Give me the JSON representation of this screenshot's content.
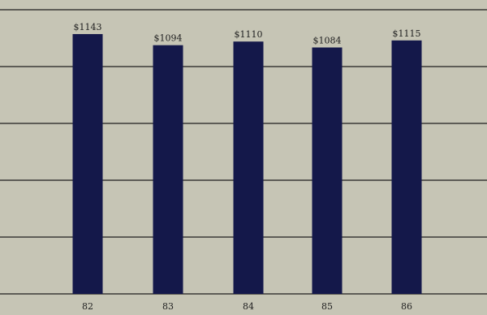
{
  "chart_data": {
    "type": "bar",
    "title": "",
    "xlabel": "",
    "ylabel": "",
    "categories": [
      "82",
      "83",
      "84",
      "85",
      "86"
    ],
    "values": [
      1143,
      1094,
      1110,
      1084,
      1115
    ],
    "data_labels": [
      "$1143",
      "$1094",
      "$1110",
      "$1084",
      "$1115"
    ],
    "ylim": [
      0,
      1250
    ],
    "grid": true,
    "legend": "none",
    "colors": {
      "background": "#c6c5b5",
      "bar": "#14184a",
      "grid": "#3a3a36",
      "text": "#222222"
    }
  }
}
